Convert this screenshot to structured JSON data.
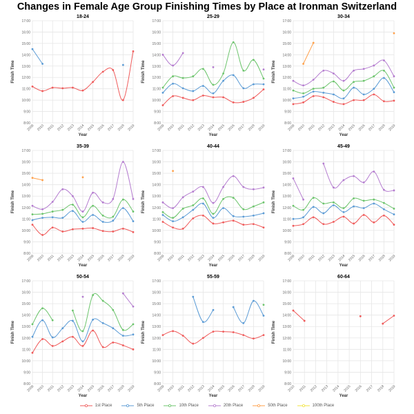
{
  "title": "Changes in Female Age Group Finishing Times by Place at Ironman Switzerland",
  "chart_data": {
    "type": "line",
    "title": "Changes in Female Age Group Finishing Times by Place at Ironman Switzerland",
    "xlabel": "Year",
    "ylabel": "Finish Time",
    "y_unit": "hours",
    "ylim": [
      8,
      17
    ],
    "y_ticks": [
      "8:00",
      "9:00",
      "10:00",
      "11:00",
      "12:00",
      "13:00",
      "14:00",
      "15:00",
      "16:00",
      "17:00"
    ],
    "grid": true,
    "legend_position": "bottom",
    "legend": [
      {
        "name": "1st Place",
        "color": "#ef5a5a"
      },
      {
        "name": "5th Place",
        "color": "#5b9bd5"
      },
      {
        "name": "10th Place",
        "color": "#6cc46c"
      },
      {
        "name": "20th Place",
        "color": "#b47ccf"
      },
      {
        "name": "50th Place",
        "color": "#ffa04a"
      },
      {
        "name": "100th Place",
        "color": "#f2e33c"
      }
    ],
    "panels": [
      {
        "title": "18-24",
        "x": [
          2009,
          2010,
          2011,
          2012,
          2013,
          2014,
          2015,
          2016,
          2017,
          2018,
          2019
        ],
        "series": {
          "1st Place": [
            11.2,
            10.8,
            11.1,
            11.05,
            11.1,
            10.85,
            11.6,
            12.5,
            12.65,
            10.0,
            14.3
          ],
          "5th Place": [
            14.5,
            13.2,
            null,
            null,
            null,
            null,
            null,
            null,
            null,
            13.1,
            null
          ]
        }
      },
      {
        "title": "25-29",
        "x": [
          2009,
          2010,
          2011,
          2012,
          2013,
          2014,
          2015,
          2016,
          2017,
          2018,
          2019
        ],
        "series": {
          "1st Place": [
            9.55,
            10.35,
            10.2,
            10.0,
            10.4,
            10.25,
            10.25,
            9.8,
            9.85,
            10.2,
            10.95
          ],
          "5th Place": [
            10.65,
            11.45,
            11.05,
            10.8,
            11.25,
            10.6,
            11.7,
            12.2,
            11.05,
            11.4,
            11.4
          ],
          "10th Place": [
            11.1,
            12.1,
            11.95,
            12.1,
            12.75,
            11.35,
            12.35,
            15.1,
            12.6,
            13.55,
            11.9
          ],
          "20th Place": [
            14.0,
            13.05,
            14.15,
            null,
            null,
            12.9,
            null,
            null,
            null,
            null,
            12.7
          ]
        }
      },
      {
        "title": "30-34",
        "x": [
          2009,
          2010,
          2011,
          2012,
          2013,
          2014,
          2015,
          2016,
          2017,
          2018,
          2019
        ],
        "series": {
          "1st Place": [
            9.65,
            9.8,
            10.35,
            10.25,
            9.85,
            9.65,
            10.0,
            10.0,
            10.5,
            9.9,
            9.95
          ],
          "5th Place": [
            10.15,
            10.3,
            10.75,
            10.65,
            10.5,
            10.15,
            11.1,
            10.5,
            11.0,
            11.95,
            10.7
          ],
          "10th Place": [
            10.85,
            10.6,
            11.0,
            11.1,
            11.65,
            10.85,
            11.6,
            11.7,
            12.1,
            12.6,
            11.1
          ],
          "20th Place": [
            11.7,
            11.3,
            11.8,
            12.6,
            12.35,
            11.7,
            12.6,
            12.75,
            13.05,
            13.5,
            12.1
          ],
          "50th Place": [
            null,
            13.2,
            15.05,
            null,
            null,
            null,
            null,
            null,
            null,
            null,
            15.9
          ]
        }
      },
      {
        "title": "35-39",
        "x": [
          2009,
          2010,
          2011,
          2012,
          2013,
          2014,
          2015,
          2016,
          2017,
          2018,
          2019
        ],
        "series": {
          "1st Place": [
            10.5,
            9.6,
            10.25,
            9.9,
            10.1,
            10.15,
            10.2,
            9.95,
            9.9,
            10.15,
            9.85
          ],
          "5th Place": [
            10.9,
            11.1,
            11.15,
            11.1,
            11.7,
            10.75,
            11.35,
            10.75,
            10.85,
            11.95,
            10.8
          ],
          "10th Place": [
            11.4,
            11.45,
            11.65,
            11.8,
            12.25,
            11.15,
            12.15,
            11.3,
            11.2,
            12.7,
            11.65
          ],
          "20th Place": [
            12.15,
            11.85,
            12.5,
            13.6,
            13.0,
            11.65,
            13.3,
            12.45,
            12.75,
            16.0,
            12.75
          ],
          "50th Place": [
            14.6,
            14.4,
            null,
            null,
            null,
            14.65,
            null,
            null,
            null,
            null,
            null
          ]
        }
      },
      {
        "title": "40-44",
        "x": [
          2009,
          2010,
          2011,
          2012,
          2013,
          2014,
          2015,
          2016,
          2017,
          2018,
          2019
        ],
        "series": {
          "1st Place": [
            10.75,
            10.25,
            10.15,
            11.05,
            11.3,
            10.6,
            10.7,
            10.85,
            10.5,
            10.55,
            10.25
          ],
          "5th Place": [
            11.35,
            10.8,
            11.15,
            11.8,
            12.35,
            11.1,
            11.95,
            11.25,
            11.2,
            11.3,
            11.5
          ],
          "10th Place": [
            11.6,
            11.1,
            11.9,
            12.2,
            12.8,
            11.45,
            12.75,
            12.85,
            11.85,
            12.1,
            12.45
          ],
          "20th Place": [
            12.45,
            11.95,
            12.9,
            13.4,
            13.8,
            12.4,
            13.8,
            14.75,
            13.8,
            13.6,
            13.75
          ],
          "50th Place": [
            null,
            15.2,
            null,
            null,
            null,
            null,
            null,
            null,
            null,
            null,
            null
          ]
        }
      },
      {
        "title": "45-49",
        "x": [
          2009,
          2010,
          2011,
          2012,
          2013,
          2014,
          2015,
          2016,
          2017,
          2018,
          2019
        ],
        "series": {
          "1st Place": [
            10.4,
            10.55,
            11.15,
            10.55,
            10.75,
            11.2,
            10.6,
            11.35,
            10.7,
            11.3,
            10.5
          ],
          "5th Place": [
            11.0,
            11.15,
            12.05,
            11.5,
            12.2,
            11.6,
            12.1,
            11.95,
            12.35,
            11.85,
            11.4
          ],
          "10th Place": [
            12.15,
            11.8,
            12.85,
            12.35,
            12.45,
            11.95,
            12.8,
            12.6,
            12.7,
            12.4,
            11.9
          ],
          "20th Place": [
            14.55,
            12.7,
            null,
            15.85,
            13.75,
            14.4,
            14.75,
            14.2,
            15.15,
            13.55,
            13.5
          ]
        }
      },
      {
        "title": "50-54",
        "x": [
          2009,
          2010,
          2011,
          2012,
          2013,
          2014,
          2015,
          2016,
          2017,
          2018,
          2019
        ],
        "series": {
          "1st Place": [
            10.7,
            11.9,
            11.3,
            11.7,
            12.1,
            11.3,
            12.65,
            11.2,
            11.6,
            11.35,
            11.0
          ],
          "5th Place": [
            12.1,
            13.55,
            12.05,
            12.85,
            13.5,
            11.7,
            13.6,
            13.3,
            12.85,
            12.2,
            12.3
          ],
          "10th Place": [
            13.2,
            14.6,
            13.55,
            null,
            14.4,
            12.6,
            15.75,
            15.25,
            14.45,
            12.7,
            13.2
          ],
          "20th Place": [
            null,
            null,
            null,
            null,
            null,
            15.6,
            null,
            null,
            null,
            15.9,
            14.75
          ]
        }
      },
      {
        "title": "55-59",
        "x": [
          2009,
          2010,
          2011,
          2012,
          2013,
          2014,
          2015,
          2016,
          2017,
          2018,
          2019
        ],
        "series": {
          "1st Place": [
            12.25,
            12.6,
            12.2,
            11.5,
            12.0,
            12.55,
            12.55,
            12.5,
            12.25,
            11.95,
            12.25
          ],
          "5th Place": [
            null,
            null,
            null,
            15.6,
            13.4,
            14.45,
            null,
            14.7,
            13.3,
            15.25,
            13.95
          ],
          "10th Place": [
            null,
            null,
            null,
            null,
            null,
            null,
            null,
            null,
            null,
            null,
            14.9
          ]
        }
      },
      {
        "title": "60-64",
        "x": [
          2010,
          2011,
          2012,
          2013,
          2014,
          2015,
          2016,
          2017,
          2018,
          2019
        ],
        "series": {
          "1st Place": [
            14.4,
            13.5,
            null,
            null,
            null,
            null,
            13.9,
            null,
            13.25,
            13.95
          ]
        }
      }
    ]
  }
}
